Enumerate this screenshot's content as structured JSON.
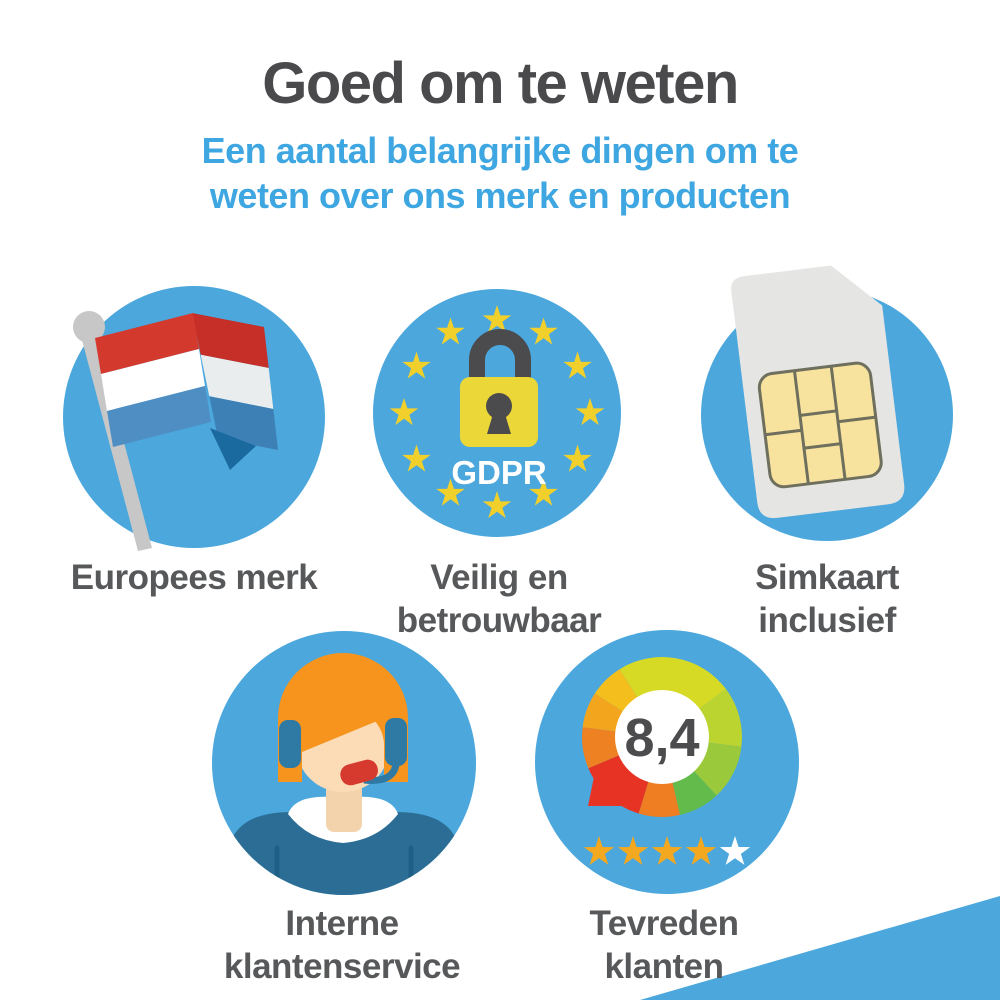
{
  "title": "Goed om te weten",
  "subtitle": "Een aantal belangrijke dingen om te\nweten over ons merk en producten",
  "colors": {
    "bubble_blue": "#4ba7dc",
    "subtitle_blue": "#3ea6e0",
    "title_gray": "#4a4a4c",
    "label_gray": "#57585a",
    "eu_star_yellow": "#f1d02c",
    "star_gold": "#f3a81f",
    "star_empty": "#ffffff",
    "corner_accent": "#4ba7dc"
  },
  "items": [
    {
      "label": "Europees merk",
      "icon": "netherlands-flag-icon"
    },
    {
      "label": "Veilig en\nbetrouwbaar",
      "icon": "gdpr-lock-icon",
      "badge_text": "GDPR"
    },
    {
      "label": "Simkaart\ninclusief",
      "icon": "sim-card-icon"
    },
    {
      "label": "Interne\nklantenservice",
      "icon": "support-agent-icon"
    },
    {
      "label": "Tevreden\nklanten",
      "icon": "rating-gauge-icon",
      "rating_score": "8,4",
      "stars_filled": 4,
      "stars_total": 5,
      "gauge_colors": [
        "#d7da24",
        "#bcd42f",
        "#9aca3c",
        "#62bb4b",
        "#ef7d22",
        "#e63323",
        "#ee8122",
        "#f4a51e",
        "#f4bf1c"
      ]
    }
  ]
}
